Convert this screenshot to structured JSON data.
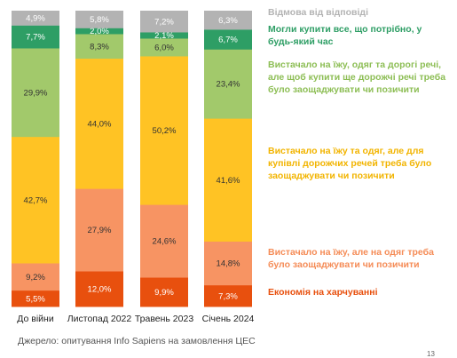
{
  "chart_data": {
    "type": "bar",
    "stacked": true,
    "categories": [
      "До війни",
      "Листопад 2022",
      "Травень 2023",
      "Січень 2024"
    ],
    "series": [
      {
        "name": "Економія на харчуванні",
        "color": "#E8500E",
        "values": [
          5.5,
          12.0,
          9.9,
          7.3
        ],
        "labels": [
          "5,5%",
          "12,0%",
          "9,9%",
          "7,3%"
        ]
      },
      {
        "name": "Вистачало на їжу, але на одяг треба було заощаджувати чи позичити",
        "color": "#F79463",
        "values": [
          9.2,
          27.9,
          24.6,
          14.8
        ],
        "labels": [
          "9,2%",
          "27,9%",
          "24,6%",
          "14,8%"
        ]
      },
      {
        "name": "Вистачало на їжу та одяг, але для купівлі дорожчих речей треба було заощаджувати чи позичити",
        "color": "#FFC324",
        "values": [
          42.7,
          44.0,
          50.2,
          41.6
        ],
        "labels": [
          "42,7%",
          "44,0%",
          "50,2%",
          "41,6%"
        ]
      },
      {
        "name": "Вистачало на їжу, одяг та дорогі речі, але щоб купити ще дорожчі речі треба було заощаджувати чи позичити",
        "color": "#A2C96B",
        "values": [
          29.9,
          8.3,
          6.0,
          23.4
        ],
        "labels": [
          "29,9%",
          "8,3%",
          "6,0%",
          "23,4%"
        ]
      },
      {
        "name": "Могли купити все, що потрібно, у будь-який час",
        "color": "#2E9E65",
        "values": [
          7.7,
          2.0,
          2.1,
          6.7
        ],
        "labels": [
          "7,7%",
          "2,0%",
          "2,1%",
          "6,7%"
        ]
      },
      {
        "name": "Відмова від відповіді",
        "color": "#B3B3B3",
        "values": [
          4.9,
          5.8,
          7.2,
          6.3
        ],
        "labels": [
          "4,9%",
          "5,8%",
          "7,2%",
          "6,3%"
        ]
      }
    ]
  },
  "legend": {
    "refusal": "Відмова від відповіді",
    "could_buy": "Могли купити все, що потрібно, у будь-який час",
    "expensive": "Вистачало на їжу, одяг та дорогі речі, але щоб купити ще дорожчі речі треба було заощаджувати чи позичити",
    "food_clothes": "Вистачало на їжу та одяг, але для купівлі дорожчих речей треба було заощаджувати чи позичити",
    "food_only": "Вистачало на їжу, але на одяг треба було заощаджувати чи позичити",
    "food_saving": "Економія на харчуванні"
  },
  "colors": {
    "refusal": "#B3B3B3",
    "could_buy": "#2E9E65",
    "expensive": "#A2C96B",
    "food_clothes": "#FFC324",
    "food_only": "#F79463",
    "food_saving": "#E8500E"
  },
  "source": "Джерело: опитування Info Sapiens на замовлення ЦЕС",
  "page_number": "13"
}
